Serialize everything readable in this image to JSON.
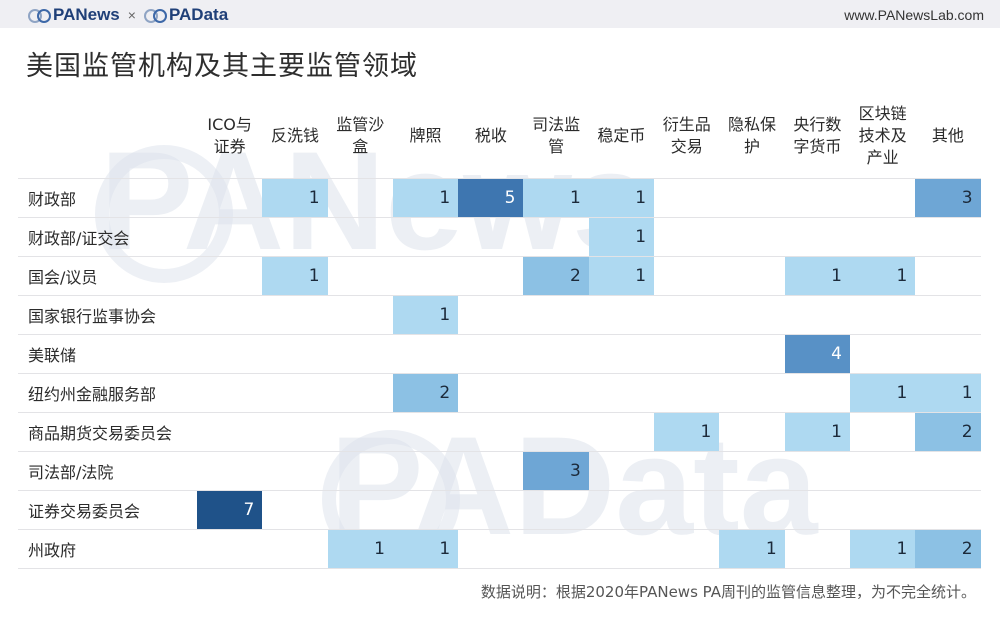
{
  "header": {
    "brand_left": "PANews",
    "separator": "×",
    "brand_right": "PAData",
    "url": "www.PANewsLab.com"
  },
  "title": "美国监管机构及其主要监管领域",
  "note": "数据说明：根据2020年PANews PA周刊的监管信息整理，为不完全统计。",
  "watermarks": [
    "PANews",
    "PAData"
  ],
  "colors": {
    "1": "#aed9f1",
    "2": "#8cc1e4",
    "3": "#6ea6d5",
    "4": "#5891c6",
    "5": "#3e76b0",
    "7": "#1f5289",
    "text_light": "#ffffff",
    "text_dark": "#1c2a3a"
  },
  "chart_data": {
    "type": "heatmap",
    "title": "美国监管机构及其主要监管领域",
    "columns": [
      "ICO与证券",
      "反洗钱",
      "监管沙盒",
      "牌照",
      "税收",
      "司法监管",
      "稳定币",
      "衍生品交易",
      "隐私保护",
      "央行数字货币",
      "区块链技术及产业",
      "其他"
    ],
    "column_lines": [
      [
        "ICO与",
        "证券"
      ],
      [
        "反洗钱"
      ],
      [
        "监管沙",
        "盒"
      ],
      [
        "牌照"
      ],
      [
        "税收"
      ],
      [
        "司法监",
        "管"
      ],
      [
        "稳定币"
      ],
      [
        "衍生品",
        "交易"
      ],
      [
        "隐私保",
        "护"
      ],
      [
        "央行数",
        "字货币"
      ],
      [
        "区块链",
        "技术及",
        "产业"
      ],
      [
        "其他"
      ]
    ],
    "rows": [
      {
        "label": "财政部",
        "values": [
          null,
          1,
          null,
          1,
          5,
          1,
          1,
          null,
          null,
          null,
          null,
          3
        ]
      },
      {
        "label": "财政部/证交会",
        "values": [
          null,
          null,
          null,
          null,
          null,
          null,
          1,
          null,
          null,
          null,
          null,
          null
        ]
      },
      {
        "label": "国会/议员",
        "values": [
          null,
          1,
          null,
          null,
          null,
          2,
          1,
          null,
          null,
          1,
          1,
          null
        ]
      },
      {
        "label": "国家银行监事协会",
        "values": [
          null,
          null,
          null,
          1,
          null,
          null,
          null,
          null,
          null,
          null,
          null,
          null
        ]
      },
      {
        "label": "美联储",
        "values": [
          null,
          null,
          null,
          null,
          null,
          null,
          null,
          null,
          null,
          4,
          null,
          null
        ]
      },
      {
        "label": "纽约州金融服务部",
        "values": [
          null,
          null,
          null,
          2,
          null,
          null,
          null,
          null,
          null,
          null,
          1,
          1
        ]
      },
      {
        "label": "商品期货交易委员会",
        "values": [
          null,
          null,
          null,
          null,
          null,
          null,
          null,
          1,
          null,
          1,
          null,
          2
        ]
      },
      {
        "label": "司法部/法院",
        "values": [
          null,
          null,
          null,
          null,
          null,
          3,
          null,
          null,
          null,
          null,
          null,
          null
        ]
      },
      {
        "label": "证券交易委员会",
        "values": [
          7,
          null,
          null,
          null,
          null,
          null,
          null,
          null,
          null,
          null,
          null,
          null
        ]
      },
      {
        "label": "州政府",
        "values": [
          null,
          null,
          1,
          1,
          null,
          null,
          null,
          null,
          1,
          null,
          1,
          2
        ]
      }
    ],
    "value_range": [
      1,
      7
    ],
    "note": "数据说明：根据2020年PANews PA周刊的监管信息整理，为不完全统计。"
  }
}
